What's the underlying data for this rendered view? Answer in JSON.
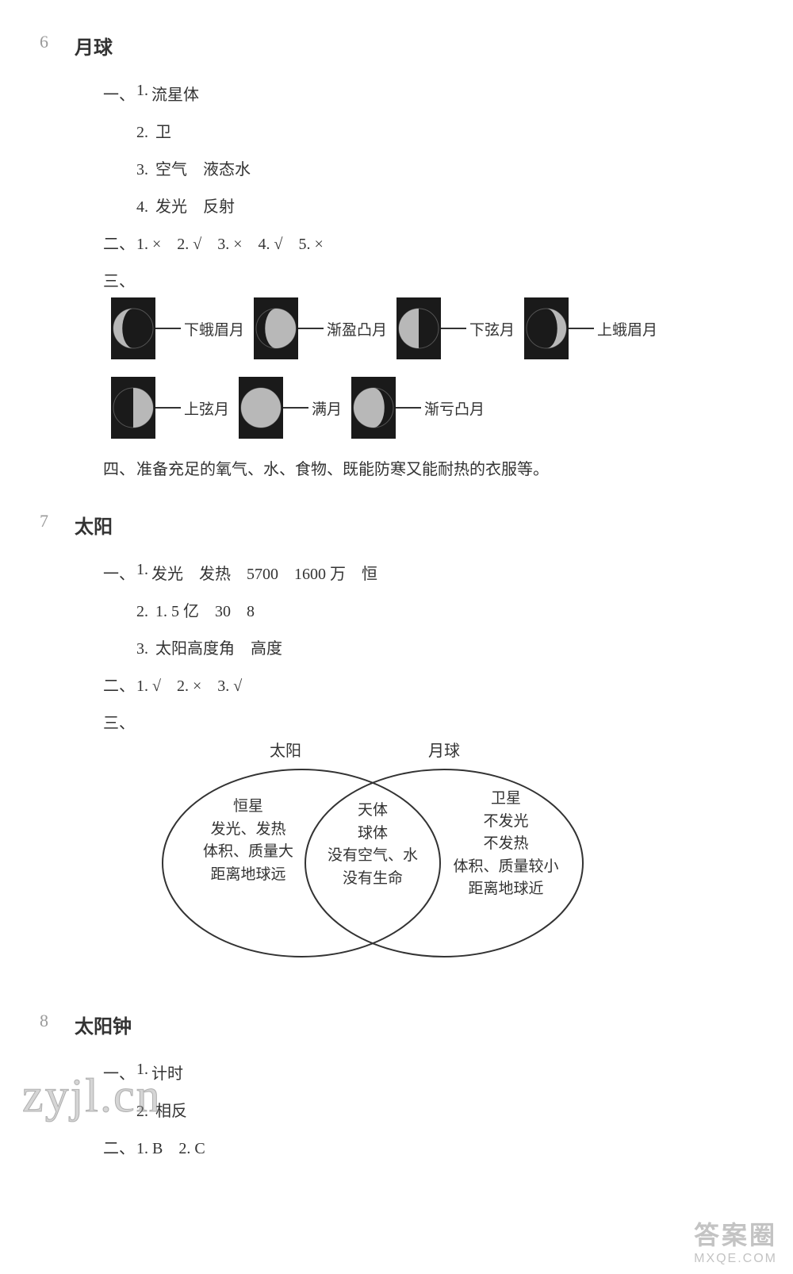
{
  "s6": {
    "num": "6",
    "title": "月球",
    "q1": {
      "label": "一、",
      "a1_n": "1.",
      "a1_t": "流星体",
      "a2_n": "2.",
      "a2_t": "卫",
      "a3_n": "3.",
      "a3_t": "空气　液态水",
      "a4_n": "4.",
      "a4_t": "发光　反射"
    },
    "q2": {
      "label": "二、",
      "text": "1. ×　2. √　3. ×　4. √　5. ×"
    },
    "q3": {
      "label": "三、",
      "row1": [
        {
          "label": "下蛾眉月",
          "phase": "waning-crescent"
        },
        {
          "label": "渐盈凸月",
          "phase": "waxing-gibbous"
        },
        {
          "label": "下弦月",
          "phase": "last-quarter"
        },
        {
          "label": "上蛾眉月",
          "phase": "waxing-crescent"
        }
      ],
      "row2": [
        {
          "label": "上弦月",
          "phase": "first-quarter"
        },
        {
          "label": "满月",
          "phase": "full"
        },
        {
          "label": "渐亏凸月",
          "phase": "waning-gibbous"
        }
      ]
    },
    "q4": {
      "label": "四、",
      "text": "准备充足的氧气、水、食物、既能防寒又能耐热的衣服等。"
    }
  },
  "s7": {
    "num": "7",
    "title": "太阳",
    "q1": {
      "label": "一、",
      "a1_n": "1.",
      "a1_t": "发光　发热　5700　1600 万　恒",
      "a2_n": "2.",
      "a2_t": "1. 5 亿　30　8",
      "a3_n": "3.",
      "a3_t": "太阳高度角　高度"
    },
    "q2": {
      "label": "二、",
      "text": "1. √　2. ×　3. √"
    },
    "q3": {
      "label": "三、",
      "left_title": "太阳",
      "right_title": "月球",
      "left": [
        "恒星",
        "发光、发热",
        "体积、质量大",
        "距离地球远"
      ],
      "center": [
        "天体",
        "球体",
        "没有空气、水",
        "没有生命"
      ],
      "right": [
        "卫星",
        "不发光",
        "不发热",
        "体积、质量较小",
        "距离地球近"
      ],
      "stroke": "#333333"
    }
  },
  "s8": {
    "num": "8",
    "title": "太阳钟",
    "q1": {
      "label": "一、",
      "a1_n": "1.",
      "a1_t": "计时",
      "a2_n": "2.",
      "a2_t": "相反"
    },
    "q2": {
      "label": "二、",
      "text": "1. B　2. C"
    }
  },
  "wm": {
    "zyj": "zyjl.cn",
    "br1": "答案圈",
    "br2": "MXQE.COM"
  },
  "colors": {
    "moon_dark": "#1a1a1a",
    "moon_light": "#b8b8b8",
    "text": "#333333"
  }
}
